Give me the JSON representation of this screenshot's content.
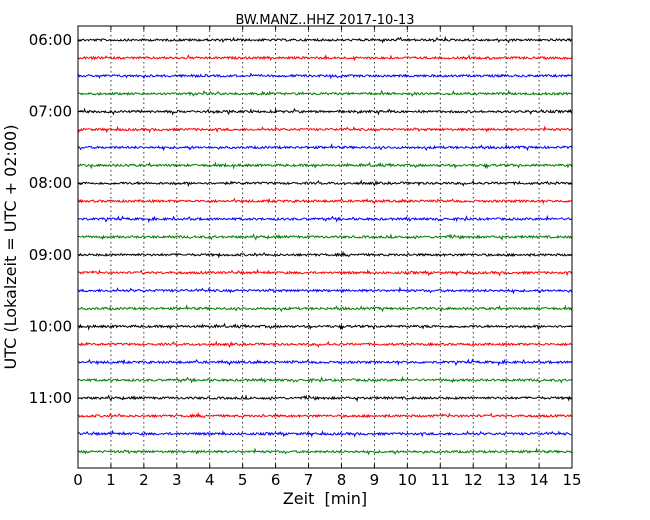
{
  "chart_data": {
    "type": "line",
    "title": "BW.MANZ..HHZ 2017-10-13",
    "xlabel": "Zeit  [min]",
    "ylabel": "UTC (Lokalzeit = UTC + 02:00)",
    "xlim": [
      0,
      15
    ],
    "x_ticks": [
      "0",
      "1",
      "2",
      "3",
      "4",
      "5",
      "6",
      "7",
      "8",
      "9",
      "10",
      "11",
      "12",
      "13",
      "14",
      "15"
    ],
    "y_ticks": [
      "06:00",
      "07:00",
      "08:00",
      "09:00",
      "10:00",
      "11:00"
    ],
    "grid": "vertical dotted",
    "trace_interval_min": 15,
    "color_cycle": [
      "#000000",
      "#ff0000",
      "#0000ff",
      "#008000"
    ],
    "series": [
      {
        "start": "06:00"
      },
      {
        "start": "06:15"
      },
      {
        "start": "06:30"
      },
      {
        "start": "06:45"
      },
      {
        "start": "07:00"
      },
      {
        "start": "07:15"
      },
      {
        "start": "07:30"
      },
      {
        "start": "07:45"
      },
      {
        "start": "08:00"
      },
      {
        "start": "08:15"
      },
      {
        "start": "08:30"
      },
      {
        "start": "08:45"
      },
      {
        "start": "09:00"
      },
      {
        "start": "09:15"
      },
      {
        "start": "09:30"
      },
      {
        "start": "09:45"
      },
      {
        "start": "10:00"
      },
      {
        "start": "10:15"
      },
      {
        "start": "10:30"
      },
      {
        "start": "10:45"
      },
      {
        "start": "11:00"
      },
      {
        "start": "11:15"
      },
      {
        "start": "11:30"
      },
      {
        "start": "11:45"
      }
    ]
  }
}
